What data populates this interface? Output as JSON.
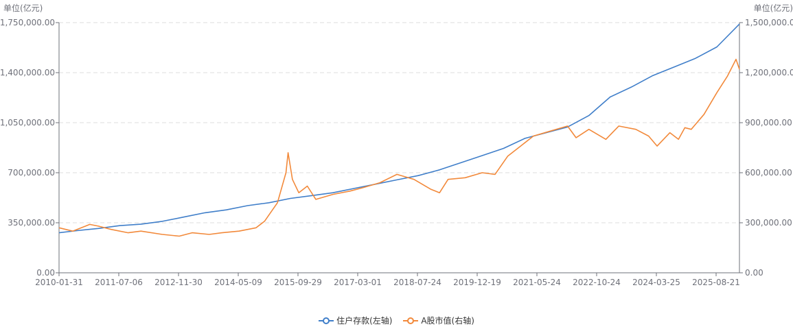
{
  "units": {
    "left": "单位(亿元)",
    "right": "单位(亿元)"
  },
  "colors": {
    "deposits": "#3f7ec9",
    "market_cap": "#f2893a",
    "axis": "#6e7079",
    "grid": "#dddddd"
  },
  "legend": [
    {
      "label": "住户存款(左轴)",
      "color": "#3f7ec9"
    },
    {
      "label": "A股市值(右轴)",
      "color": "#f2893a"
    }
  ],
  "chart_data": {
    "type": "line",
    "grid": true,
    "legend_position": "bottom",
    "x_tick_labels": [
      "2010-01-31",
      "2011-07-06",
      "2012-11-30",
      "2014-05-09",
      "2015-09-29",
      "2017-03-01",
      "2018-07-24",
      "2019-12-19",
      "2021-05-24",
      "2022-10-24",
      "2024-03-25",
      "2025-08-21"
    ],
    "x_range": [
      2010.08,
      2026.03
    ],
    "y_left": {
      "range": [
        0,
        1750000
      ],
      "ticks": [
        "0.00",
        "350,000.00",
        "700,000.00",
        "1,050,000.00",
        "1,400,000.00",
        "1,750,000.00"
      ]
    },
    "y_right": {
      "range": [
        0,
        1500000
      ],
      "ticks": [
        "0.00",
        "300,000.00",
        "600,000.00",
        "900,000.00",
        "1,200,000.00",
        "1,500,000.00"
      ]
    },
    "series": [
      {
        "name": "住户存款(左轴)",
        "axis": "left",
        "points": [
          [
            2010.08,
            280000
          ],
          [
            2010.5,
            295000
          ],
          [
            2011.0,
            310000
          ],
          [
            2011.5,
            330000
          ],
          [
            2012.0,
            340000
          ],
          [
            2012.5,
            360000
          ],
          [
            2013.0,
            390000
          ],
          [
            2013.5,
            420000
          ],
          [
            2014.0,
            440000
          ],
          [
            2014.5,
            470000
          ],
          [
            2015.0,
            490000
          ],
          [
            2015.5,
            520000
          ],
          [
            2016.0,
            540000
          ],
          [
            2016.5,
            560000
          ],
          [
            2017.0,
            590000
          ],
          [
            2017.5,
            620000
          ],
          [
            2018.0,
            650000
          ],
          [
            2018.5,
            680000
          ],
          [
            2019.0,
            720000
          ],
          [
            2019.5,
            770000
          ],
          [
            2020.0,
            820000
          ],
          [
            2020.5,
            870000
          ],
          [
            2021.0,
            940000
          ],
          [
            2021.5,
            980000
          ],
          [
            2022.0,
            1020000
          ],
          [
            2022.5,
            1100000
          ],
          [
            2023.0,
            1230000
          ],
          [
            2023.5,
            1300000
          ],
          [
            2024.0,
            1380000
          ],
          [
            2024.5,
            1440000
          ],
          [
            2025.0,
            1500000
          ],
          [
            2025.5,
            1580000
          ],
          [
            2026.03,
            1740000
          ]
        ]
      },
      {
        "name": "A股市值(右轴)",
        "axis": "right",
        "points": [
          [
            2010.08,
            270000
          ],
          [
            2010.4,
            250000
          ],
          [
            2010.8,
            290000
          ],
          [
            2011.0,
            280000
          ],
          [
            2011.3,
            260000
          ],
          [
            2011.7,
            240000
          ],
          [
            2012.0,
            250000
          ],
          [
            2012.5,
            230000
          ],
          [
            2012.9,
            220000
          ],
          [
            2013.2,
            240000
          ],
          [
            2013.6,
            230000
          ],
          [
            2013.9,
            240000
          ],
          [
            2014.3,
            250000
          ],
          [
            2014.7,
            270000
          ],
          [
            2014.9,
            310000
          ],
          [
            2015.2,
            420000
          ],
          [
            2015.4,
            600000
          ],
          [
            2015.45,
            720000
          ],
          [
            2015.55,
            560000
          ],
          [
            2015.7,
            480000
          ],
          [
            2015.9,
            520000
          ],
          [
            2016.1,
            440000
          ],
          [
            2016.5,
            470000
          ],
          [
            2016.9,
            490000
          ],
          [
            2017.2,
            510000
          ],
          [
            2017.6,
            540000
          ],
          [
            2018.0,
            590000
          ],
          [
            2018.4,
            560000
          ],
          [
            2018.8,
            500000
          ],
          [
            2019.0,
            480000
          ],
          [
            2019.2,
            560000
          ],
          [
            2019.6,
            570000
          ],
          [
            2020.0,
            600000
          ],
          [
            2020.3,
            590000
          ],
          [
            2020.6,
            700000
          ],
          [
            2020.9,
            760000
          ],
          [
            2021.2,
            820000
          ],
          [
            2021.6,
            850000
          ],
          [
            2022.0,
            880000
          ],
          [
            2022.2,
            810000
          ],
          [
            2022.5,
            860000
          ],
          [
            2022.9,
            800000
          ],
          [
            2023.2,
            880000
          ],
          [
            2023.6,
            860000
          ],
          [
            2023.9,
            820000
          ],
          [
            2024.1,
            760000
          ],
          [
            2024.4,
            840000
          ],
          [
            2024.6,
            800000
          ],
          [
            2024.75,
            870000
          ],
          [
            2024.9,
            860000
          ],
          [
            2025.2,
            950000
          ],
          [
            2025.5,
            1080000
          ],
          [
            2025.75,
            1180000
          ],
          [
            2025.95,
            1280000
          ],
          [
            2026.03,
            1220000
          ]
        ]
      }
    ]
  }
}
